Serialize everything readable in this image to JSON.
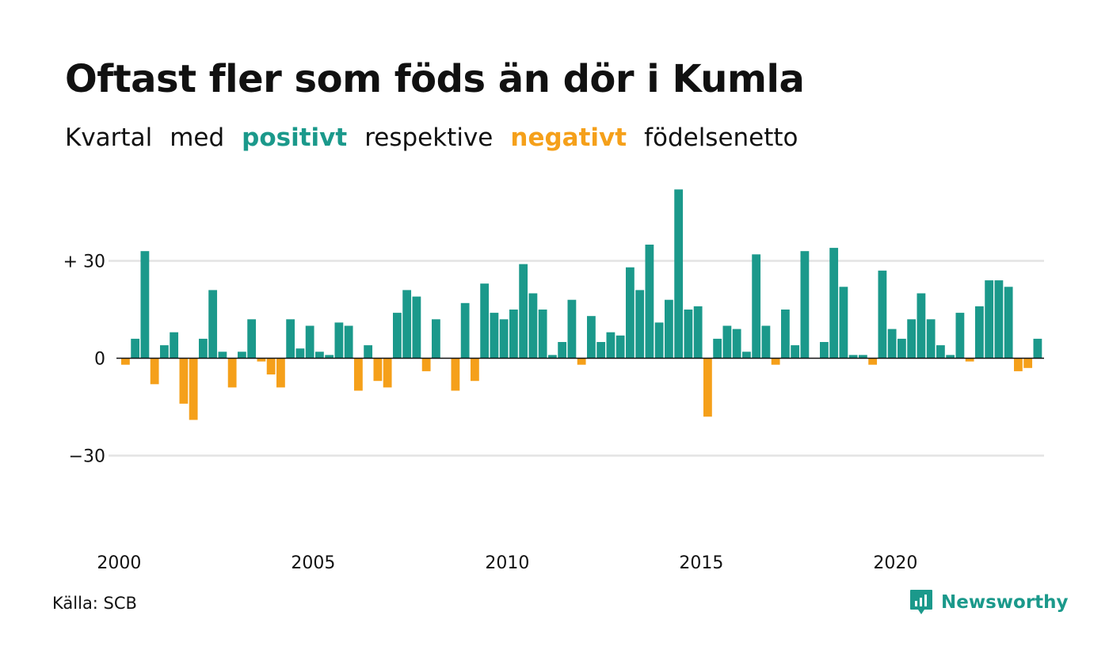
{
  "header": {
    "title": "Oftast fler som föds än dör i Kumla",
    "subtitle_parts": [
      "Kvartal",
      "med",
      "positivt",
      "respektive",
      "negativt",
      "födelsenetto"
    ]
  },
  "footer": {
    "source": "Källa: SCB",
    "brand": "Newsworthy",
    "brand_icon": "newsworthy-logo-icon"
  },
  "colors": {
    "positive": "#1b998b",
    "negative": "#f5a01a",
    "grid": "#e3e3e3",
    "zero_line": "#111111",
    "text": "#111111"
  },
  "chart_data": {
    "type": "bar",
    "title": "Oftast fler som föds än dör i Kumla",
    "subtitle": "Kvartal med positivt respektive negativt födelsenetto",
    "xlabel": "",
    "ylabel": "",
    "ylim": [
      -55,
      55
    ],
    "yticks": [
      {
        "value": 30,
        "label": "+ 30"
      },
      {
        "value": 0,
        "label": "0"
      },
      {
        "value": -30,
        "label": "−30"
      }
    ],
    "xticks": [
      {
        "year": 2000,
        "label": "2000"
      },
      {
        "year": 2005,
        "label": "2005"
      },
      {
        "year": 2010,
        "label": "2010"
      },
      {
        "year": 2015,
        "label": "2015"
      },
      {
        "year": 2020,
        "label": "2020"
      }
    ],
    "start": "2000 Q1",
    "grid": true,
    "legend": "in subtitle",
    "values": [
      -2,
      6,
      33,
      -8,
      4,
      8,
      -14,
      -19,
      6,
      21,
      2,
      -9,
      2,
      12,
      -1,
      -5,
      -9,
      12,
      3,
      10,
      2,
      1,
      11,
      10,
      -10,
      4,
      -7,
      -9,
      14,
      21,
      19,
      -4,
      12,
      0,
      -10,
      17,
      -7,
      23,
      14,
      12,
      15,
      29,
      20,
      15,
      1,
      5,
      18,
      -2,
      13,
      5,
      8,
      7,
      28,
      21,
      35,
      11,
      18,
      52,
      15,
      16,
      -18,
      6,
      10,
      9,
      2,
      32,
      10,
      -2,
      15,
      4,
      33,
      0,
      5,
      34,
      22,
      1,
      1,
      -2,
      27,
      9,
      6,
      12,
      20,
      12,
      4,
      1,
      14,
      -1,
      16,
      24,
      24,
      22,
      -4,
      -3,
      6
    ]
  }
}
